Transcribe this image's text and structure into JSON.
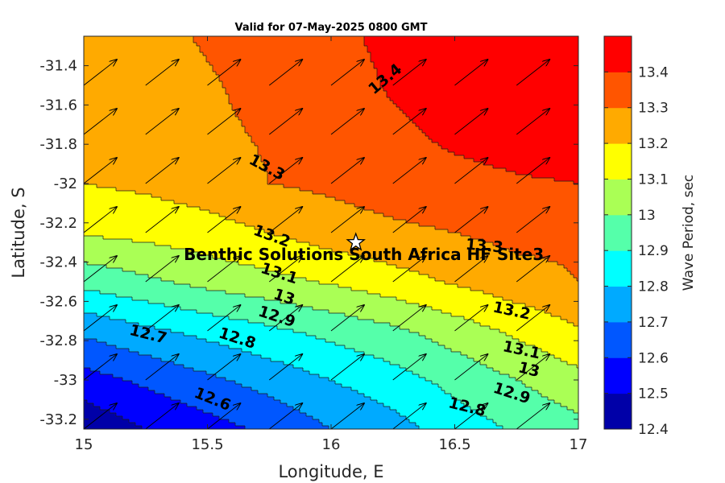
{
  "chart_data": {
    "type": "heatmap",
    "title": "Valid for 07-May-2025 0800 GMT",
    "xlabel": "Longitude, E",
    "ylabel": "Latitude, S",
    "xlim": [
      15,
      17
    ],
    "ylim": [
      -33.25,
      -31.25
    ],
    "xticks": [
      15,
      15.5,
      16,
      16.5,
      17
    ],
    "xtick_labels": [
      "15",
      "15.5",
      "16",
      "16.5",
      "17"
    ],
    "yticks": [
      -31.4,
      -31.6,
      -31.8,
      -32,
      -32.2,
      -32.4,
      -32.6,
      -32.8,
      -33,
      -33.2
    ],
    "ytick_labels": [
      "-31.4",
      "-31.6",
      "-31.8",
      "-32",
      "-32.2",
      "-32.4",
      "-32.6",
      "-32.8",
      "-33",
      "-33.2"
    ],
    "colorbar": {
      "label": "Wave Period, sec",
      "levels": [
        12.4,
        12.5,
        12.6,
        12.7,
        12.8,
        12.9,
        13,
        13.1,
        13.2,
        13.3,
        13.4,
        13.5
      ],
      "tick_labels": [
        "12.4",
        "12.5",
        "12.6",
        "12.7",
        "12.8",
        "12.9",
        "13",
        "13.1",
        "13.2",
        "13.3",
        "13.4"
      ],
      "colors": [
        "#0000a8",
        "#0000ff",
        "#0057ff",
        "#00aaff",
        "#00ffff",
        "#55ffaa",
        "#aaff55",
        "#ffff00",
        "#ffaa00",
        "#ff5500",
        "#ff0000"
      ]
    },
    "grid_lon": [
      15,
      15.25,
      15.5,
      15.75,
      16,
      16.25,
      16.5,
      16.75,
      17
    ],
    "grid_lat": [
      -33.25,
      -33,
      -32.75,
      -32.5,
      -32.25,
      -32,
      -31.75,
      -31.5,
      -31.25
    ],
    "wave_period": [
      [
        12.42,
        12.5,
        12.56,
        12.62,
        12.7,
        12.76,
        12.85,
        12.91,
        12.97
      ],
      [
        12.56,
        12.62,
        12.68,
        12.74,
        12.8,
        12.86,
        12.93,
        13.0,
        13.07
      ],
      [
        12.72,
        12.78,
        12.83,
        12.88,
        12.93,
        12.98,
        13.05,
        13.12,
        13.19
      ],
      [
        12.93,
        12.98,
        13.03,
        13.07,
        13.11,
        13.16,
        13.21,
        13.26,
        13.3
      ],
      [
        13.11,
        13.13,
        13.16,
        13.2,
        13.25,
        13.28,
        13.3,
        13.33,
        13.32
      ],
      [
        13.2,
        13.22,
        13.25,
        13.3,
        13.32,
        13.35,
        13.37,
        13.39,
        13.4
      ],
      [
        13.22,
        13.25,
        13.28,
        13.31,
        13.34,
        13.38,
        13.42,
        13.44,
        13.45
      ],
      [
        13.24,
        13.26,
        13.29,
        13.33,
        13.36,
        13.41,
        13.45,
        13.47,
        13.48
      ],
      [
        13.25,
        13.27,
        13.31,
        13.34,
        13.38,
        13.42,
        13.46,
        13.48,
        13.49
      ]
    ],
    "contour_labels": [
      {
        "text": "13.4",
        "lon": 16.22,
        "lat": -31.47,
        "rot": -40
      },
      {
        "text": "13.3",
        "lon": 15.74,
        "lat": -31.92,
        "rot": 28
      },
      {
        "text": "13.3",
        "lon": 16.62,
        "lat": -32.32,
        "rot": 5
      },
      {
        "text": "13.2",
        "lon": 15.76,
        "lat": -32.27,
        "rot": 20
      },
      {
        "text": "13.2",
        "lon": 16.73,
        "lat": -32.65,
        "rot": 12
      },
      {
        "text": "13.1",
        "lon": 15.79,
        "lat": -32.46,
        "rot": 18
      },
      {
        "text": "13.1",
        "lon": 16.77,
        "lat": -32.85,
        "rot": 12
      },
      {
        "text": "13",
        "lon": 15.81,
        "lat": -32.58,
        "rot": 18
      },
      {
        "text": "13",
        "lon": 16.8,
        "lat": -32.95,
        "rot": 14
      },
      {
        "text": "12.9",
        "lon": 15.78,
        "lat": -32.68,
        "rot": 18
      },
      {
        "text": "12.9",
        "lon": 16.73,
        "lat": -33.07,
        "rot": 18
      },
      {
        "text": "12.8",
        "lon": 15.62,
        "lat": -32.79,
        "rot": 18
      },
      {
        "text": "12.8",
        "lon": 16.55,
        "lat": -33.14,
        "rot": 14
      },
      {
        "text": "12.7",
        "lon": 15.26,
        "lat": -32.77,
        "rot": 14
      },
      {
        "text": "12.6",
        "lon": 15.52,
        "lat": -33.1,
        "rot": 22
      }
    ],
    "arrow_direction_deg": 38,
    "site": {
      "name": "Benthic Solutions South Africa HF Site3",
      "lon": 16.1,
      "lat": -32.3
    }
  }
}
